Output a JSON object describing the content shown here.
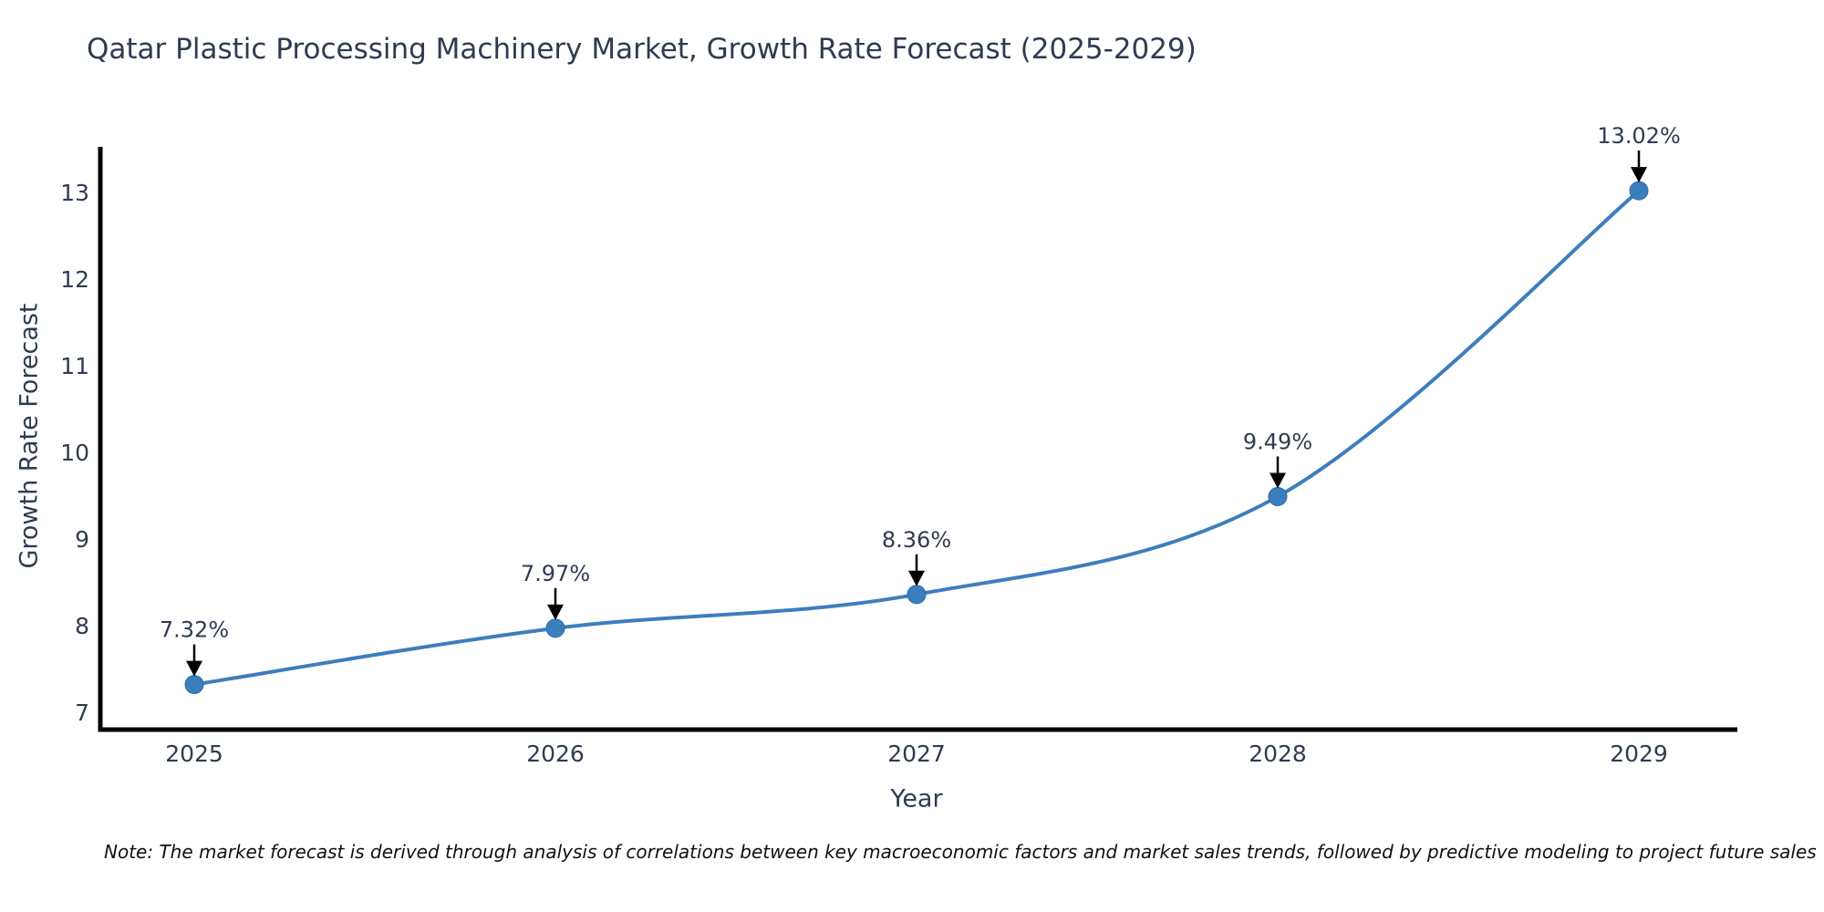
{
  "page": {
    "background": "#ffffff"
  },
  "chart_data": {
    "type": "line",
    "title": "Qatar Plastic Processing Machinery Market, Growth Rate Forecast (2025-2029)",
    "xlabel": "Year",
    "ylabel": "Growth Rate Forecast",
    "categories": [
      "2025",
      "2026",
      "2027",
      "2028",
      "2029"
    ],
    "series": [
      {
        "name": "Growth Rate Forecast",
        "values": [
          7.32,
          7.97,
          8.36,
          9.49,
          13.02
        ]
      }
    ],
    "point_labels": [
      "7.32%",
      "7.97%",
      "8.36%",
      "9.49%",
      "13.02%"
    ],
    "y_ticks": [
      "7",
      "8",
      "9",
      "10",
      "11",
      "12",
      "13"
    ],
    "y_tick_values": [
      7,
      8,
      9,
      10,
      11,
      12,
      13
    ],
    "ylim": [
      6.8,
      13.5
    ],
    "grid": false,
    "legend": false,
    "line_color": "#3d7ebd",
    "marker_color": "#3a7ebd",
    "marker_edge_color": "#2f6ba8",
    "axis_color": "#000000",
    "arrow_color": "#000000",
    "text_color": "#2f3b52",
    "note": "Note: The market forecast is derived through analysis of correlations between key macroeconomic factors and market sales trends, followed by predictive modeling to project future sales"
  }
}
